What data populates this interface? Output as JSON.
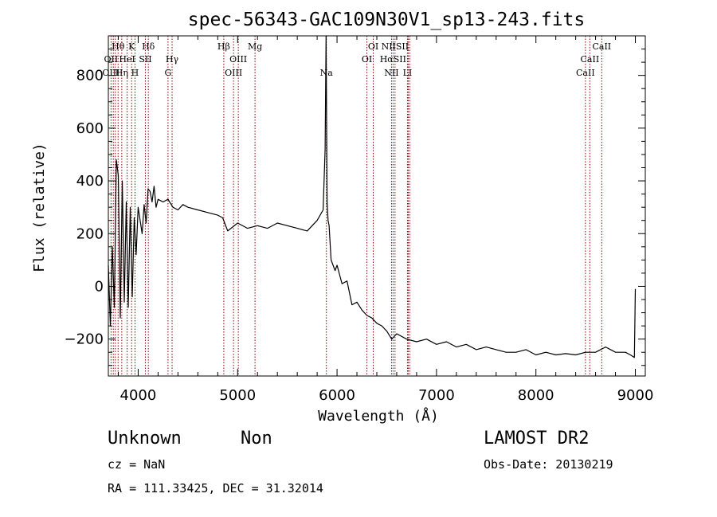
{
  "chart_data": {
    "type": "line",
    "title": "spec-56343-GAC109N30V1_sp13-243.fits",
    "xlabel": "Wavelength (Å)",
    "ylabel": "Flux (relative)",
    "xlim": [
      3700,
      9100
    ],
    "ylim": [
      -340,
      950
    ],
    "xticks": [
      4000,
      5000,
      6000,
      7000,
      8000,
      9000
    ],
    "yticks": [
      -200,
      0,
      200,
      400,
      600,
      800
    ],
    "xtick_labels": [
      "4000",
      "5000",
      "6000",
      "7000",
      "8000",
      "9000"
    ],
    "ytick_labels": [
      "−200",
      "0",
      "200",
      "400",
      "600",
      "800"
    ],
    "grid": false,
    "line_color": "#000000",
    "marker_color": "#8b0000",
    "series": [
      {
        "x": [
          3700,
          3720,
          3740,
          3760,
          3780,
          3800,
          3820,
          3840,
          3860,
          3880,
          3900,
          3920,
          3940,
          3960,
          3980,
          4000,
          4020,
          4040,
          4060,
          4080,
          4100,
          4120,
          4140,
          4160,
          4180,
          4200,
          4250,
          4300,
          4350,
          4400,
          4450,
          4500,
          4600,
          4700,
          4800,
          4850,
          4900,
          5000,
          5100,
          5200,
          5300,
          5400,
          5500,
          5600,
          5700,
          5800,
          5860,
          5880,
          5890,
          5895,
          5900,
          5910,
          5920,
          5940,
          5960,
          5980,
          6000,
          6050,
          6100,
          6150,
          6200,
          6250,
          6300,
          6350,
          6400,
          6450,
          6500,
          6550,
          6600,
          6650,
          6700,
          6800,
          6900,
          7000,
          7100,
          7200,
          7300,
          7400,
          7500,
          7600,
          7700,
          7800,
          7900,
          8000,
          8100,
          8200,
          8300,
          8400,
          8500,
          8600,
          8700,
          8800,
          8900,
          8950,
          8990,
          9000
        ],
        "y": [
          80,
          -150,
          150,
          -80,
          480,
          420,
          -120,
          400,
          -60,
          320,
          -80,
          300,
          -40,
          260,
          120,
          300,
          250,
          200,
          310,
          240,
          370,
          360,
          320,
          380,
          300,
          330,
          320,
          330,
          300,
          290,
          310,
          300,
          290,
          280,
          270,
          260,
          210,
          240,
          220,
          230,
          220,
          240,
          230,
          220,
          210,
          250,
          290,
          520,
          950,
          600,
          320,
          250,
          230,
          100,
          80,
          60,
          80,
          10,
          20,
          -70,
          -60,
          -90,
          -110,
          -120,
          -140,
          -150,
          -170,
          -200,
          -180,
          -190,
          -200,
          -210,
          -200,
          -220,
          -210,
          -230,
          -220,
          -240,
          -230,
          -240,
          -250,
          -250,
          -240,
          -260,
          -250,
          -260,
          -255,
          -260,
          -250,
          -250,
          -230,
          -250,
          -250,
          -260,
          -270,
          -10
        ]
      }
    ],
    "line_markers": [
      {
        "label": "Hθ",
        "x": 3798,
        "row": 0
      },
      {
        "label": "K",
        "x": 3934,
        "row": 0
      },
      {
        "label": "Hδ",
        "x": 4102,
        "row": 0
      },
      {
        "label": "Hβ",
        "x": 4861,
        "row": 0
      },
      {
        "label": "Mg",
        "x": 5175,
        "row": 0
      },
      {
        "label": "OI",
        "x": 6364,
        "row": 0
      },
      {
        "label": "NIISII",
        "x": 6583,
        "row": 0
      },
      {
        "label": "CaII",
        "x": 8662,
        "row": 0
      },
      {
        "label": "OII",
        "x": 3727,
        "row": 1
      },
      {
        "label": "HeI",
        "x": 3889,
        "row": 1
      },
      {
        "label": "SII",
        "x": 4072,
        "row": 1
      },
      {
        "label": "Hγ",
        "x": 4341,
        "row": 1
      },
      {
        "label": "OIII",
        "x": 5007,
        "row": 1
      },
      {
        "label": "OI",
        "x": 6300,
        "row": 1
      },
      {
        "label": "HαSII",
        "x": 6563,
        "row": 1
      },
      {
        "label": "CaII",
        "x": 8542,
        "row": 1
      },
      {
        "label": "OIII",
        "x": 3727,
        "row": 2
      },
      {
        "label": "Hη",
        "x": 3835,
        "row": 2
      },
      {
        "label": "H",
        "x": 3968,
        "row": 2
      },
      {
        "label": "G",
        "x": 4300,
        "row": 2
      },
      {
        "label": "OIII",
        "x": 4959,
        "row": 2
      },
      {
        "label": "Na",
        "x": 5893,
        "row": 2
      },
      {
        "label": "NII",
        "x": 6548,
        "row": 2
      },
      {
        "label": "LI",
        "x": 6708,
        "row": 2
      },
      {
        "label": "CaII",
        "x": 8498,
        "row": 2
      }
    ],
    "marker_lines_x": [
      3727,
      3750,
      3770,
      3798,
      3835,
      3889,
      3934,
      3968,
      4072,
      4102,
      4300,
      4341,
      4861,
      4959,
      5007,
      5175,
      5893,
      6300,
      6364,
      6548,
      6563,
      6583,
      6708,
      6716,
      6731,
      8498,
      8542,
      8662
    ]
  },
  "info": {
    "object_type": "Unknown",
    "object_class": "Non",
    "survey": "LAMOST DR2",
    "cz": "cz = NaN",
    "obs_date": "Obs-Date: 20130219",
    "coords": "RA = 111.33425, DEC =  31.32014"
  }
}
